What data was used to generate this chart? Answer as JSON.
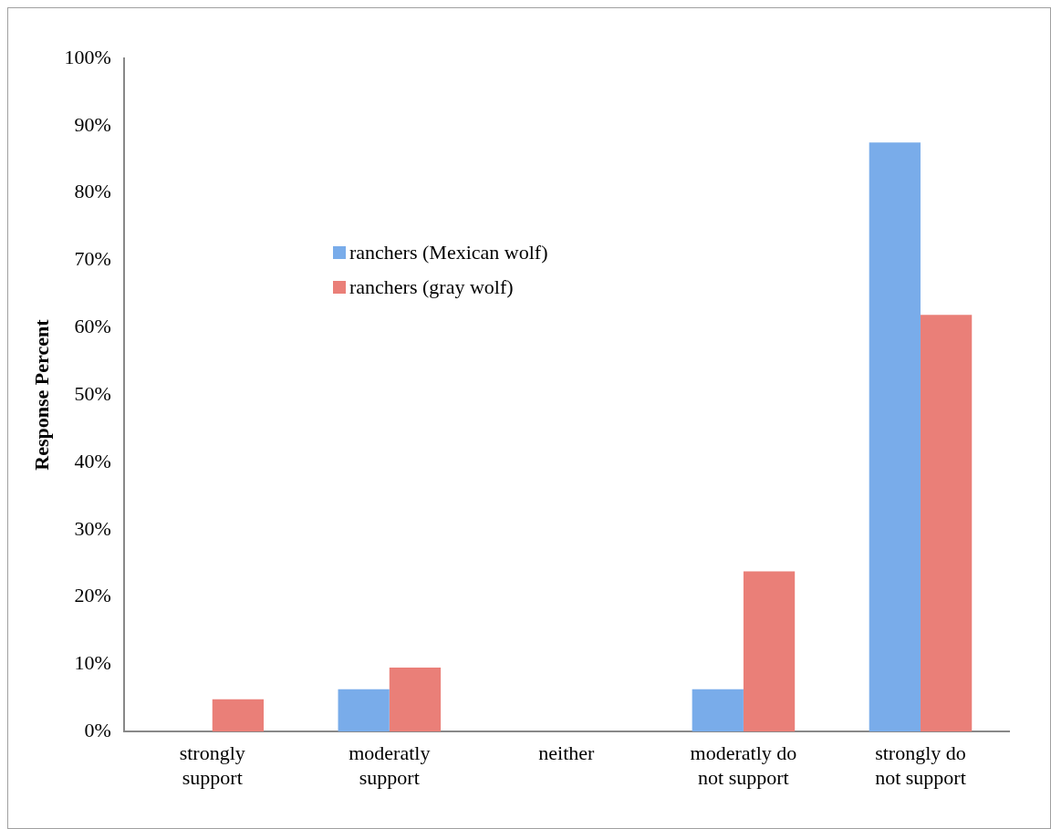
{
  "chart_data": {
    "type": "bar",
    "ylabel": "Response Percent",
    "categories": [
      "strongly support",
      "moderatly support",
      "neither",
      "moderatly do not support",
      "strongly do not support"
    ],
    "series": [
      {
        "name": "ranchers (Mexican wolf)",
        "color": "#79acea",
        "values": [
          0,
          6.3,
          0,
          6.3,
          87.5
        ]
      },
      {
        "name": "ranchers (gray wolf)",
        "color": "#ea7f78",
        "values": [
          4.8,
          9.5,
          0,
          23.8,
          61.9
        ]
      }
    ],
    "ylim": [
      0,
      100
    ],
    "yticks": [
      {
        "value": 0,
        "label": "0%"
      },
      {
        "value": 10,
        "label": "10%"
      },
      {
        "value": 20,
        "label": "20%"
      },
      {
        "value": 30,
        "label": "30%"
      },
      {
        "value": 40,
        "label": "40%"
      },
      {
        "value": 50,
        "label": "50%"
      },
      {
        "value": 60,
        "label": "60%"
      },
      {
        "value": 70,
        "label": "70%"
      },
      {
        "value": 80,
        "label": "80%"
      },
      {
        "value": 90,
        "label": "90%"
      },
      {
        "value": 100,
        "label": "100%"
      }
    ],
    "grid": false,
    "legend": "top left"
  }
}
